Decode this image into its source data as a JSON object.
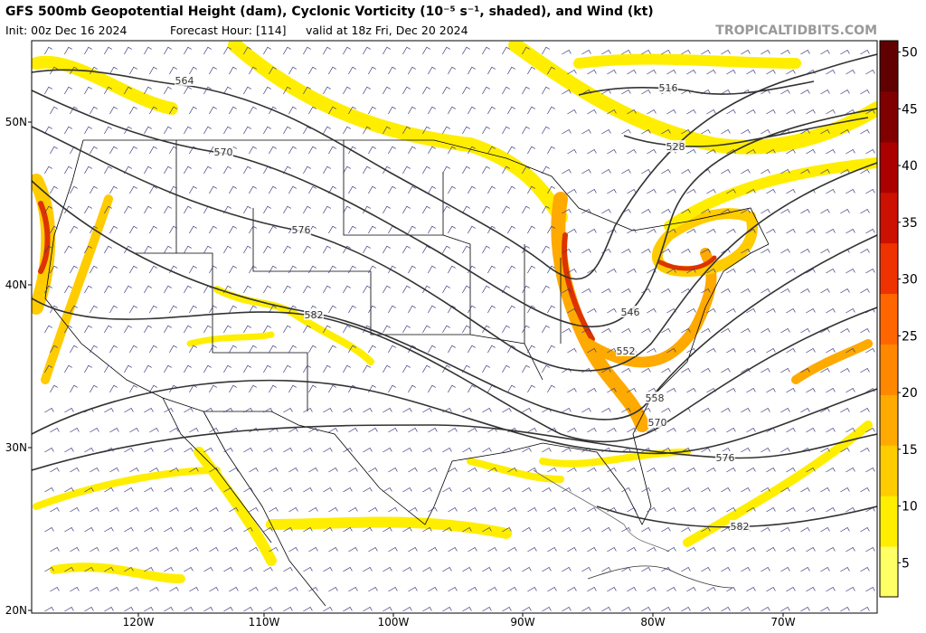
{
  "header": {
    "title": "GFS 500mb Geopotential Height (dam), Cyclonic Vorticity (10⁻⁵ s⁻¹, shaded), and Wind (kt)",
    "init": "Init: 00z Dec 16 2024",
    "forecast_hour": "Forecast Hour: [114]",
    "valid": "valid at 18z Fri, Dec 20 2024",
    "watermark": "TROPICALTIDBITS.COM"
  },
  "latitude_labels": [
    "50N",
    "40N",
    "30N",
    "20N"
  ],
  "longitude_labels": [
    "120W",
    "110W",
    "100W",
    "90W",
    "80W",
    "70W"
  ],
  "contour_labels": [
    "564",
    "570",
    "576",
    "582",
    "516",
    "528",
    "546",
    "552",
    "558",
    "570",
    "576",
    "582"
  ],
  "colorbar": {
    "lim": [
      2,
      51
    ],
    "ticks": [
      5,
      10,
      15,
      20,
      25,
      30,
      35,
      40,
      45,
      50
    ],
    "colors": [
      "#ffff66",
      "#ffee00",
      "#ffcc00",
      "#ffaa00",
      "#ff8800",
      "#ff6600",
      "#ee3300",
      "#cc1100",
      "#aa0000",
      "#800000",
      "#600000"
    ]
  }
}
